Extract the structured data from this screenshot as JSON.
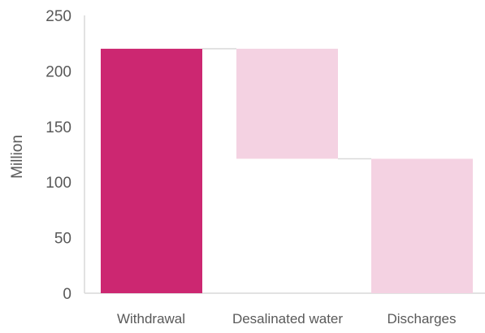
{
  "chart_data": {
    "type": "bar",
    "subtype": "waterfall",
    "ylabel": "Million",
    "xlabel": "",
    "ylim": [
      0,
      250
    ],
    "yticks": [
      0,
      50,
      100,
      150,
      200,
      250
    ],
    "categories": [
      "Withdrawal",
      "Desalinated water",
      "Discharges"
    ],
    "bars": [
      {
        "category": "Withdrawal",
        "start": 0,
        "end": 220,
        "color": "#CC2771"
      },
      {
        "category": "Desalinated water",
        "start": 121,
        "end": 220,
        "color": "#F4D2E2"
      },
      {
        "category": "Discharges",
        "start": 0,
        "end": 121,
        "color": "#F4D2E2"
      }
    ],
    "connectors": true,
    "connector_color": "#D9D9D9",
    "axis_color": "#D9D9D9",
    "grid": false,
    "legend": "none"
  }
}
